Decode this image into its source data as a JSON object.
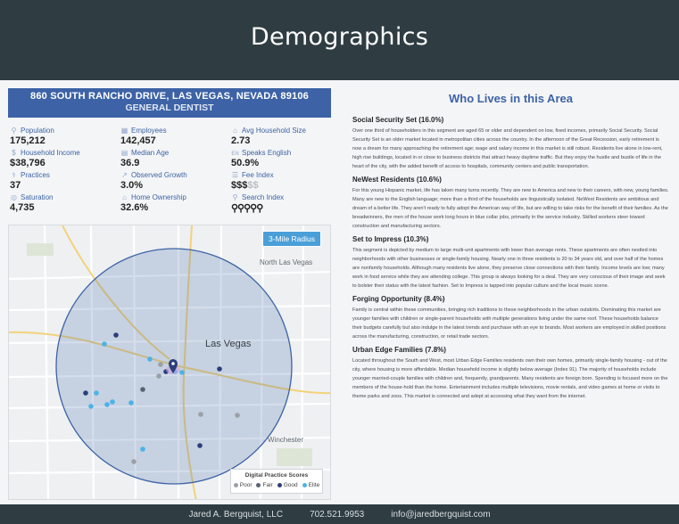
{
  "header": {
    "title": "Demographics"
  },
  "address": {
    "line": "860 SOUTH RANCHO DRIVE, LAS VEGAS, NEVADA 89106",
    "practice": "GENERAL DENTIST"
  },
  "stats": [
    {
      "label": "Population",
      "value": "175,212",
      "icon": "person-icon",
      "glyph": "⚲"
    },
    {
      "label": "Employees",
      "value": "142,457",
      "icon": "employees-icon",
      "glyph": "▦"
    },
    {
      "label": "Avg Household Size",
      "value": "2.73",
      "icon": "household-size-icon",
      "glyph": "⌂"
    },
    {
      "label": "Household Income",
      "value": "$38,796",
      "icon": "income-icon",
      "glyph": "$"
    },
    {
      "label": "Median Age",
      "value": "36.9",
      "icon": "calendar-icon",
      "glyph": "▤"
    },
    {
      "label": "Speaks English",
      "value": "50.9%",
      "icon": "language-icon",
      "glyph": "EN"
    },
    {
      "label": "Practices",
      "value": "37",
      "icon": "practices-icon",
      "glyph": "⚕"
    },
    {
      "label": "Observed Growth",
      "value": "3.0%",
      "icon": "growth-icon",
      "glyph": "↗"
    },
    {
      "label": "Fee Index",
      "value_on": "$$$",
      "value_off": "$$",
      "icon": "fee-index-icon",
      "glyph": "☰"
    },
    {
      "label": "Saturation",
      "value": "4,735",
      "icon": "saturation-icon",
      "glyph": "◎"
    },
    {
      "label": "Home Ownership",
      "value": "32.6%",
      "icon": "home-ownership-icon",
      "glyph": "⌂"
    },
    {
      "label": "Search Index",
      "value": "⚲⚲⚲⚲⚲",
      "icon": "search-index-icon",
      "glyph": "⚲"
    }
  ],
  "map": {
    "radius_label": "3-Mile Radius",
    "labels": {
      "north_las_vegas": "North Las Vegas",
      "las_vegas": "Las Vegas",
      "winchester": "Winchester"
    },
    "legend": {
      "title": "Digital Practice Scores",
      "items": [
        {
          "label": "Poor",
          "color": "#9aa0a6"
        },
        {
          "label": "Fair",
          "color": "#5a6470"
        },
        {
          "label": "Good",
          "color": "#2b3f7a"
        },
        {
          "label": "Elite",
          "color": "#4bb3e8"
        }
      ]
    },
    "colors": {
      "circle_fill": "#3d63a6",
      "circle_stroke": "#3d63a6",
      "badge": "#4a9fd8"
    }
  },
  "who": {
    "title": "Who Lives in this Area",
    "segments": [
      {
        "title": "Social Security Set (16.0%)",
        "text": "Over one third of householders in this segment are aged 65 or older and dependent on low, fixed incomes, primarily Social Security. Social Security Set is an older market located in metropolitan cities across the country. In the afternoon of the Great Recession, early retirement is now a dream for many approaching the retirement age; wage and salary income in this market is still robust. Residents live alone in low-rent, high rise buildings, located in or close to business districts that attract heavy daytime traffic. But they enjoy the hustle and bustle of life in the heart of the city, with the added benefit of access to hospitals, community centers and public transportation."
      },
      {
        "title": "NeWest Residents (10.6%)",
        "text": "For this young Hispanic market, life has taken many turns recently. They are new to America and new to their careers, with new, young families. Many are new to the English language; more than a third of the households are linguistically isolated. NeWest Residents are ambitious and dream of a better life. They aren't ready to fully adopt the American way of life, but are willing to take risks for the benefit of their families. As the breadwinners, the men of the house work long hours in blue collar jobs, primarily in the service industry. Skilled workers steer toward construction and manufacturing sectors."
      },
      {
        "title": "Set to Impress (10.3%)",
        "text": "This segment is depicted by medium to large multi-unit apartments with lower than average rents. These apartments are often nestled into neighborhoods with other businesses or single-family housing. Nearly one in three residents is 20 to 34 years old, and over half of the homes are nonfamily households. Although many residents live alone, they preserve close connections with their family. Income levels are low; many work in food service while they are attending college. This group is always looking for a deal. They are very conscious of their image and seek to bolster their status with the latest fashion. Set to Impress is tapped into popular culture and the local music scene."
      },
      {
        "title": "Forging Opportunity (8.4%)",
        "text": "Family is central within these communities, bringing rich traditions to these neighborhoods in the urban outskirts. Dominating this market are younger families with children or single-parent households with multiple generations living under the same roof. These households balance their budgets carefully but also indulge in the latest trends and purchase with an eye to brands. Most workers are employed in skilled positions across the manufacturing, construction, or retail trade sectors."
      },
      {
        "title": "Urban Edge Families (7.8%)",
        "text": "Located throughout the South and West, most Urban Edge Families residents own their own homes, primarily single-family housing - out of the city, where housing is more affordable. Median household income is slightly below average (Index 91). The majority of households include younger married-couple families with children and, frequently, grandparents. Many residents are foreign born. Spending is focused more on the members of the house-hold than the home. Entertainment includes multiple televisions, movie rentals, and video games at home or visits to theme parks and zoos. This market is connected and adept at accessing what they want from the internet."
      }
    ]
  },
  "footer": {
    "name": "Jared A. Bergquist, LLC",
    "phone": "702.521.9953",
    "email": "info@jaredbergquist.com"
  }
}
